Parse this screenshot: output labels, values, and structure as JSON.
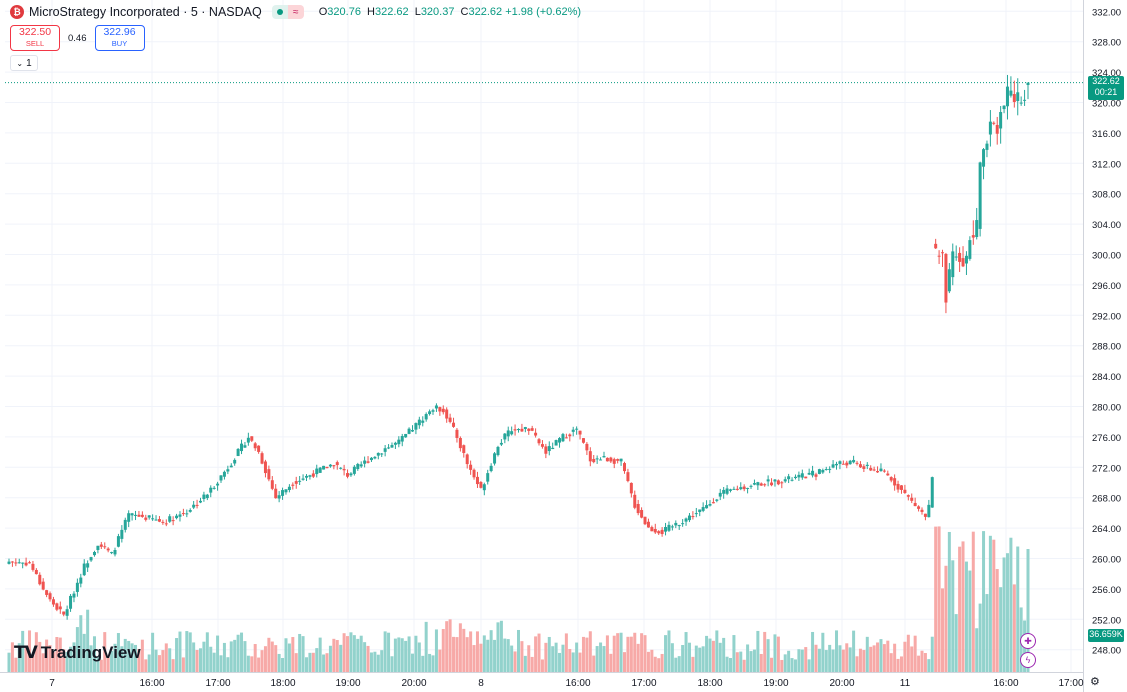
{
  "header": {
    "symbol_icon": "bitcoin-icon",
    "title": "MicroStrategy Incorporated · 5 · NASDAQ",
    "ohlc": [
      {
        "k": "O",
        "v": "320.76"
      },
      {
        "k": "H",
        "v": "322.62"
      },
      {
        "k": "L",
        "v": "320.37"
      },
      {
        "k": "C",
        "v": "322.62"
      }
    ],
    "change": "+1.98 (+0.62%)"
  },
  "trade": {
    "sell_price": "322.50",
    "sell_label": "SELL",
    "spread": "0.46",
    "buy_price": "322.96",
    "buy_label": "BUY"
  },
  "quantity": "1",
  "logo": {
    "name": "TradingView"
  },
  "price_axis": {
    "labels": [
      "332.00",
      "328.00",
      "324.00",
      "320.00",
      "316.00",
      "312.00",
      "308.00",
      "304.00",
      "300.00",
      "296.00",
      "292.00",
      "288.00",
      "284.00",
      "280.00",
      "276.00",
      "272.00",
      "268.00",
      "264.00",
      "260.00",
      "256.00",
      "252.00",
      "248.00"
    ],
    "last_price": "322.62",
    "countdown": "00:21",
    "volume_label": "36.659K"
  },
  "time_axis": {
    "labels": [
      "7",
      "16:00",
      "17:00",
      "18:00",
      "19:00",
      "20:00",
      "8",
      "16:00",
      "17:00",
      "18:00",
      "19:00",
      "20:00",
      "11",
      "16:00",
      "17:00"
    ]
  },
  "colors": {
    "up": "#26a69a",
    "down": "#ef5350",
    "vol_up": "#92d2cc",
    "vol_down": "#f7a9a7"
  },
  "chart_data": {
    "type": "candlestick",
    "ylim": [
      246,
      333
    ],
    "anchors": [
      [
        0,
        259.6
      ],
      [
        6,
        259.4
      ],
      [
        10,
        256
      ],
      [
        12,
        254.5
      ],
      [
        16,
        252.5
      ],
      [
        22,
        259
      ],
      [
        26,
        262
      ],
      [
        30,
        260.5
      ],
      [
        35,
        265.7
      ],
      [
        39,
        265.5
      ],
      [
        45,
        264.8
      ],
      [
        52,
        266.2
      ],
      [
        58,
        268.5
      ],
      [
        64,
        272
      ],
      [
        70,
        276
      ],
      [
        73,
        274
      ],
      [
        78,
        268
      ],
      [
        83,
        270
      ],
      [
        88,
        271
      ],
      [
        95,
        272.5
      ],
      [
        99,
        271
      ],
      [
        105,
        273
      ],
      [
        110,
        274.5
      ],
      [
        114,
        275.3
      ],
      [
        120,
        278
      ],
      [
        124,
        279.8
      ],
      [
        127,
        279.6
      ],
      [
        131,
        276
      ],
      [
        134,
        272.5
      ],
      [
        138,
        269
      ],
      [
        143,
        275
      ],
      [
        147,
        277
      ],
      [
        152,
        277
      ],
      [
        157,
        274
      ],
      [
        162,
        276
      ],
      [
        166,
        277
      ],
      [
        170,
        273
      ],
      [
        174,
        273.2
      ],
      [
        179,
        272.7
      ],
      [
        183,
        267
      ],
      [
        187,
        264
      ],
      [
        191,
        263.5
      ],
      [
        195,
        264.5
      ],
      [
        199,
        265.5
      ],
      [
        203,
        266.5
      ],
      [
        208,
        268.5
      ],
      [
        213,
        269.2
      ],
      [
        218,
        269.8
      ],
      [
        222,
        270
      ],
      [
        229,
        270.5
      ],
      [
        236,
        271.2
      ],
      [
        242,
        272.5
      ],
      [
        247,
        272.6
      ],
      [
        250,
        272
      ],
      [
        256,
        271.3
      ],
      [
        260,
        269.5
      ],
      [
        264,
        267.5
      ],
      [
        268,
        265.5
      ],
      [
        269,
        266.8
      ],
      [
        270,
        270.5
      ],
      [
        271,
        299.4
      ],
      [
        273,
        300.2
      ],
      [
        274,
        294.6
      ],
      [
        276,
        299.3
      ],
      [
        278,
        300
      ],
      [
        280,
        299
      ],
      [
        281,
        302.2
      ],
      [
        283,
        303.2
      ],
      [
        284,
        312
      ],
      [
        286,
        316
      ],
      [
        287,
        317.2
      ],
      [
        289,
        317.3
      ],
      [
        291,
        319.8
      ],
      [
        293,
        321.7
      ],
      [
        294,
        320.7
      ],
      [
        295,
        320.5
      ],
      [
        296,
        320.7
      ],
      [
        298,
        322.6
      ]
    ],
    "gap_after_index": 270,
    "last_close": 322.62
  }
}
